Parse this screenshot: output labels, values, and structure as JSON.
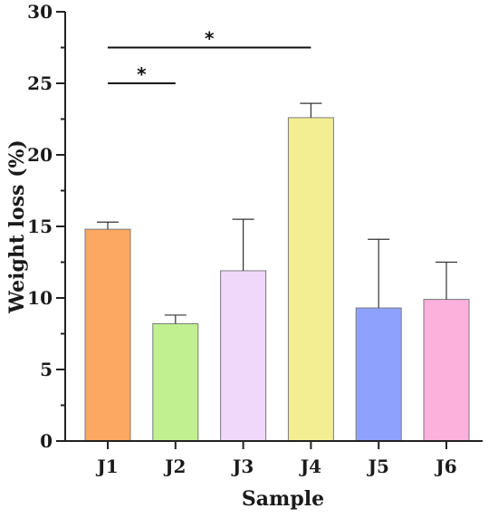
{
  "chart_data": {
    "type": "bar",
    "title": "",
    "xlabel": "Sample",
    "ylabel": "Weight loss (%)",
    "ylim": [
      0,
      30
    ],
    "yticks": [
      0,
      5,
      10,
      15,
      20,
      25,
      30
    ],
    "categories": [
      "J1",
      "J2",
      "J3",
      "J4",
      "J5",
      "J6"
    ],
    "values": [
      14.8,
      8.2,
      11.9,
      22.6,
      9.3,
      9.9
    ],
    "errors": [
      0.5,
      0.6,
      3.6,
      1.0,
      4.8,
      2.6
    ],
    "colors": [
      "#fda862",
      "#c1f090",
      "#f0d8fa",
      "#f3ee92",
      "#8ea2fd",
      "#fcb0dc"
    ],
    "significance": [
      {
        "from": "J1",
        "to": "J2",
        "y": 25.0,
        "label": "*"
      },
      {
        "from": "J1",
        "to": "J4",
        "y": 27.5,
        "label": "*"
      }
    ],
    "grid": false,
    "legend": "none"
  }
}
